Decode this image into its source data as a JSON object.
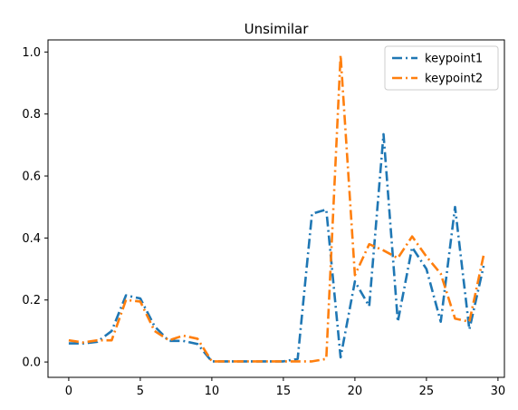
{
  "chart_data": {
    "type": "line",
    "title": "Unsimilar",
    "xlabel": "",
    "ylabel": "",
    "xlim": [
      -1.45,
      30.45
    ],
    "ylim": [
      -0.0495,
      1.039
    ],
    "xticks": [
      0,
      5,
      10,
      15,
      20,
      25,
      30
    ],
    "yticks": [
      0.0,
      0.2,
      0.4,
      0.6,
      0.8,
      1.0
    ],
    "xtick_labels": [
      "0",
      "5",
      "10",
      "15",
      "20",
      "25",
      "30"
    ],
    "ytick_labels": [
      "0.0",
      "0.2",
      "0.4",
      "0.6",
      "0.8",
      "1.0"
    ],
    "grid": false,
    "legend_position": "top-right",
    "x": [
      0,
      1,
      2,
      3,
      4,
      5,
      6,
      7,
      8,
      9,
      10,
      11,
      12,
      13,
      14,
      15,
      16,
      17,
      18,
      19,
      20,
      21,
      22,
      23,
      24,
      25,
      26,
      27,
      28,
      29
    ],
    "series": [
      {
        "name": "keypoint1",
        "color": "#1f77b4",
        "style": "dashdot",
        "values": [
          0.06,
          0.06,
          0.065,
          0.1,
          0.215,
          0.205,
          0.115,
          0.068,
          0.068,
          0.058,
          0.002,
          0.002,
          0.002,
          0.002,
          0.002,
          0.002,
          0.01,
          0.478,
          0.492,
          0.015,
          0.26,
          0.18,
          0.735,
          0.13,
          0.37,
          0.3,
          0.13,
          0.5,
          0.105,
          0.31
        ]
      },
      {
        "name": "keypoint2",
        "color": "#ff7f0e",
        "style": "dashdot",
        "values": [
          0.07,
          0.063,
          0.07,
          0.07,
          0.2,
          0.195,
          0.1,
          0.07,
          0.085,
          0.075,
          0.002,
          0.002,
          0.002,
          0.002,
          0.002,
          0.002,
          0.002,
          0.002,
          0.01,
          0.99,
          0.28,
          0.38,
          0.36,
          0.335,
          0.405,
          0.34,
          0.285,
          0.14,
          0.13,
          0.345
        ]
      }
    ]
  }
}
